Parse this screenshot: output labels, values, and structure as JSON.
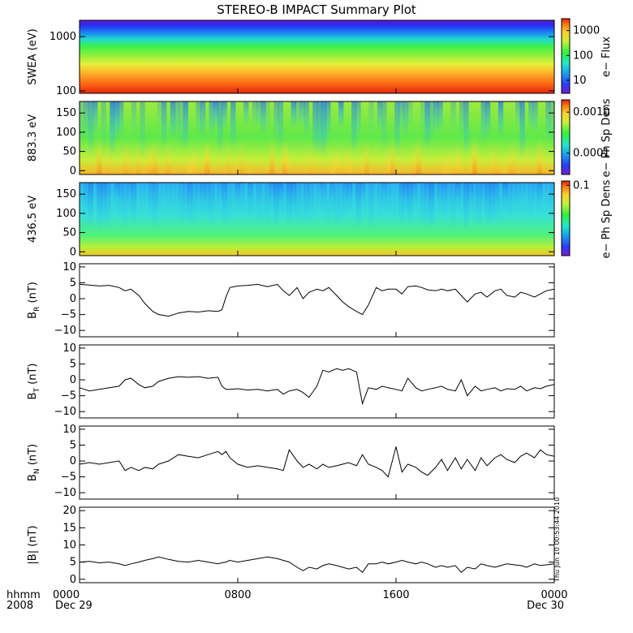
{
  "figure": {
    "title": "STEREO-B IMPACT Summary Plot",
    "stamp": "Thu Jun 10 00:53:44 2010",
    "x_label_line1": "hhmm",
    "x_label_line2": "2008",
    "x_ticks": [
      {
        "value": 0,
        "line1": "0000",
        "line2": "Dec 29"
      },
      {
        "value": 8,
        "line1": "0800",
        "line2": ""
      },
      {
        "value": 16,
        "line1": "1600",
        "line2": ""
      },
      {
        "value": 24,
        "line1": "0000",
        "line2": "Dec 30"
      }
    ]
  },
  "chart_data": [
    {
      "type": "heatmap",
      "ylabel": "SWEA (eV)",
      "x_range_hours": [
        0,
        24
      ],
      "ylim": [
        90,
        2000
      ],
      "y_scale": "log",
      "y_ticks": [
        {
          "value": 100,
          "label": "100"
        },
        {
          "value": 1000,
          "label": "1000"
        }
      ],
      "colorbar": {
        "label": "e− Flux",
        "scale": "log",
        "range": [
          3,
          3000
        ],
        "ticks": [
          {
            "value": 10,
            "label": "10"
          },
          {
            "value": 100,
            "label": "100"
          },
          {
            "value": 1000,
            "label": "1000"
          }
        ]
      }
    },
    {
      "type": "heatmap",
      "ylabel": "883.3 eV",
      "x_range_hours": [
        0,
        24
      ],
      "ylim": [
        -10,
        180
      ],
      "y_ticks": [
        {
          "value": 0,
          "label": "0"
        },
        {
          "value": 50,
          "label": "50"
        },
        {
          "value": 100,
          "label": "100"
        },
        {
          "value": 150,
          "label": "150"
        }
      ],
      "colorbar": {
        "label": "e− Ph Sp Dens",
        "scale": "log",
        "range": [
          3e-05,
          0.002
        ],
        "ticks": [
          {
            "value": 0.0001,
            "label": "0.0001"
          },
          {
            "value": 0.001,
            "label": "0.0010"
          }
        ]
      }
    },
    {
      "type": "heatmap",
      "ylabel": "436.5 eV",
      "x_range_hours": [
        0,
        24
      ],
      "ylim": [
        -10,
        180
      ],
      "y_ticks": [
        {
          "value": 0,
          "label": "0"
        },
        {
          "value": 50,
          "label": "50"
        },
        {
          "value": 100,
          "label": "100"
        },
        {
          "value": 150,
          "label": "150"
        }
      ],
      "colorbar": {
        "label": "e− Ph Sp Dens",
        "scale": "log",
        "range": [
          0.005,
          0.12
        ],
        "ticks": [
          {
            "value": 0.1,
            "label": "0.1"
          }
        ]
      }
    },
    {
      "type": "line",
      "ylabel_main": "B",
      "ylabel_sub": "R",
      "ylabel_unit": " (nT)",
      "ylim": [
        -12,
        11
      ],
      "y_ticks": [
        {
          "value": -10,
          "label": "−10"
        },
        {
          "value": -5,
          "label": "−5"
        },
        {
          "value": 0,
          "label": "0"
        },
        {
          "value": 5,
          "label": "5"
        },
        {
          "value": 10,
          "label": "10"
        }
      ],
      "x": [
        0,
        0.5,
        1,
        1.5,
        2,
        2.3,
        2.6,
        3,
        3.3,
        3.7,
        4,
        4.5,
        5,
        5.5,
        6,
        6.5,
        7,
        7.2,
        7.4,
        7.6,
        8,
        8.5,
        9,
        9.5,
        10,
        10.3,
        10.6,
        11,
        11.3,
        11.6,
        12,
        12.3,
        12.6,
        13,
        13.3,
        13.6,
        14,
        14.3,
        14.6,
        15,
        15.3,
        15.6,
        16,
        16.3,
        16.6,
        17,
        17.3,
        17.6,
        18,
        18.3,
        18.6,
        19,
        19.3,
        19.6,
        20,
        20.3,
        20.6,
        21,
        21.3,
        21.6,
        22,
        22.3,
        22.6,
        23,
        23.3,
        23.6,
        24
      ],
      "values": [
        4.5,
        4.3,
        4.0,
        4.2,
        3.5,
        2.5,
        3.0,
        1.0,
        -1.5,
        -4.0,
        -5.0,
        -5.5,
        -4.5,
        -4.0,
        -4.2,
        -3.8,
        -4.0,
        -3.5,
        0.5,
        3.5,
        4.0,
        4.2,
        4.5,
        3.8,
        4.5,
        2.5,
        1.0,
        3.5,
        0.0,
        2.0,
        3.0,
        2.5,
        3.5,
        1.0,
        -1.0,
        -2.5,
        -4.0,
        -5.0,
        -2.0,
        3.5,
        2.5,
        3.0,
        3.0,
        1.5,
        3.8,
        4.0,
        3.5,
        2.8,
        2.5,
        3.0,
        2.5,
        3.0,
        1.0,
        -1.0,
        1.5,
        2.0,
        0.5,
        2.5,
        3.0,
        1.0,
        0.5,
        2.0,
        1.5,
        0.5,
        1.5,
        2.5,
        3.0
      ]
    },
    {
      "type": "line",
      "ylabel_main": "B",
      "ylabel_sub": "T",
      "ylabel_unit": " (nT)",
      "ylim": [
        -12,
        11
      ],
      "y_ticks": [
        {
          "value": -10,
          "label": "−10"
        },
        {
          "value": -5,
          "label": "−5"
        },
        {
          "value": 0,
          "label": "0"
        },
        {
          "value": 5,
          "label": "5"
        },
        {
          "value": 10,
          "label": "10"
        }
      ],
      "x": [
        0,
        0.5,
        1,
        1.5,
        2,
        2.3,
        2.6,
        3,
        3.3,
        3.7,
        4,
        4.5,
        5,
        5.5,
        6,
        6.5,
        7,
        7.2,
        7.4,
        7.6,
        8,
        8.5,
        9,
        9.5,
        10,
        10.3,
        10.6,
        11,
        11.3,
        11.6,
        12,
        12.3,
        12.6,
        13,
        13.3,
        13.6,
        14,
        14.3,
        14.6,
        15,
        15.3,
        15.6,
        16,
        16.3,
        16.6,
        17,
        17.3,
        17.6,
        18,
        18.3,
        18.6,
        19,
        19.3,
        19.6,
        20,
        20.3,
        20.6,
        21,
        21.3,
        21.6,
        22,
        22.3,
        22.6,
        23,
        23.3,
        23.6,
        24
      ],
      "values": [
        -2.5,
        -3.5,
        -3.0,
        -2.5,
        -2.0,
        0.0,
        0.5,
        -1.5,
        -2.5,
        -2.0,
        -0.5,
        0.5,
        1.0,
        0.8,
        1.0,
        0.5,
        0.8,
        -2.0,
        -3.0,
        -3.0,
        -2.8,
        -3.2,
        -3.0,
        -3.5,
        -3.0,
        -4.5,
        -3.5,
        -3.0,
        -4.0,
        -5.5,
        -2.0,
        3.0,
        2.5,
        3.5,
        3.0,
        3.5,
        2.5,
        -7.5,
        -2.5,
        -3.0,
        -2.0,
        -2.5,
        -3.0,
        -3.5,
        0.5,
        -2.5,
        -3.5,
        -3.0,
        -2.5,
        -2.0,
        -3.0,
        -3.5,
        0.0,
        -5.0,
        -2.0,
        -3.5,
        -3.0,
        -2.5,
        -3.5,
        -2.8,
        -3.0,
        -2.0,
        -3.5,
        -2.5,
        -2.8,
        -2.0,
        -1.5
      ]
    },
    {
      "type": "line",
      "ylabel_main": "B",
      "ylabel_sub": "N",
      "ylabel_unit": " (nT)",
      "ylim": [
        -12,
        11
      ],
      "y_ticks": [
        {
          "value": -10,
          "label": "−10"
        },
        {
          "value": -5,
          "label": "−5"
        },
        {
          "value": 0,
          "label": "0"
        },
        {
          "value": 5,
          "label": "5"
        },
        {
          "value": 10,
          "label": "10"
        }
      ],
      "x": [
        0,
        0.5,
        1,
        1.5,
        2,
        2.3,
        2.6,
        3,
        3.3,
        3.7,
        4,
        4.5,
        5,
        5.5,
        6,
        6.5,
        7,
        7.2,
        7.4,
        7.6,
        8,
        8.5,
        9,
        9.5,
        10,
        10.3,
        10.6,
        11,
        11.3,
        11.6,
        12,
        12.3,
        12.6,
        13,
        13.3,
        13.6,
        14,
        14.3,
        14.6,
        15,
        15.3,
        15.6,
        16,
        16.3,
        16.6,
        17,
        17.3,
        17.6,
        18,
        18.3,
        18.6,
        19,
        19.3,
        19.6,
        20,
        20.3,
        20.6,
        21,
        21.3,
        21.6,
        22,
        22.3,
        22.6,
        23,
        23.3,
        23.6,
        24
      ],
      "values": [
        -1.0,
        -0.5,
        -1.0,
        -0.5,
        0.0,
        -3.0,
        -2.0,
        -3.0,
        -2.0,
        -2.5,
        -1.0,
        0.0,
        2.0,
        1.5,
        1.0,
        2.0,
        3.0,
        2.0,
        3.0,
        1.0,
        -1.0,
        -2.0,
        -1.5,
        -2.0,
        -2.5,
        -3.0,
        3.5,
        0.0,
        -2.0,
        -1.0,
        -2.5,
        -1.0,
        -2.0,
        -1.5,
        -1.0,
        -0.5,
        -1.5,
        2.0,
        -1.0,
        -2.0,
        -3.0,
        -5.0,
        4.5,
        -3.5,
        -1.0,
        -2.0,
        -3.5,
        -4.5,
        -2.0,
        0.5,
        -3.0,
        1.0,
        -2.5,
        0.5,
        -3.0,
        1.0,
        -1.5,
        1.0,
        2.0,
        0.5,
        -0.5,
        1.5,
        2.5,
        1.0,
        3.5,
        2.0,
        1.5
      ]
    },
    {
      "type": "line",
      "ylabel_main": "|B|",
      "ylabel_sub": "",
      "ylabel_unit": " (nT)",
      "ylim": [
        -1,
        21
      ],
      "y_ticks": [
        {
          "value": 0,
          "label": "0"
        },
        {
          "value": 5,
          "label": "5"
        },
        {
          "value": 10,
          "label": "10"
        },
        {
          "value": 15,
          "label": "15"
        },
        {
          "value": 20,
          "label": "20"
        }
      ],
      "x": [
        0,
        0.5,
        1,
        1.5,
        2,
        2.3,
        2.6,
        3,
        3.3,
        3.7,
        4,
        4.5,
        5,
        5.5,
        6,
        6.5,
        7,
        7.2,
        7.4,
        7.6,
        8,
        8.5,
        9,
        9.5,
        10,
        10.3,
        10.6,
        11,
        11.3,
        11.6,
        12,
        12.3,
        12.6,
        13,
        13.3,
        13.6,
        14,
        14.3,
        14.6,
        15,
        15.3,
        15.6,
        16,
        16.3,
        16.6,
        17,
        17.3,
        17.6,
        18,
        18.3,
        18.6,
        19,
        19.3,
        19.6,
        20,
        20.3,
        20.6,
        21,
        21.3,
        21.6,
        22,
        22.3,
        22.6,
        23,
        23.3,
        23.6,
        24
      ],
      "values": [
        5.0,
        5.2,
        4.8,
        5.0,
        4.5,
        4.0,
        4.5,
        5.0,
        5.5,
        6.0,
        6.5,
        5.8,
        5.2,
        5.0,
        5.5,
        5.0,
        4.5,
        4.8,
        5.0,
        5.5,
        5.0,
        5.5,
        6.0,
        6.5,
        6.0,
        5.5,
        5.0,
        3.5,
        2.5,
        3.5,
        3.0,
        4.0,
        4.5,
        4.0,
        3.5,
        3.0,
        3.5,
        2.0,
        4.5,
        4.5,
        5.0,
        4.5,
        5.0,
        5.5,
        5.0,
        4.5,
        5.0,
        4.5,
        3.5,
        4.0,
        3.5,
        4.0,
        2.0,
        3.5,
        3.0,
        4.5,
        4.0,
        3.5,
        4.0,
        4.5,
        4.2,
        4.0,
        3.5,
        4.5,
        4.0,
        4.2,
        4.5
      ]
    }
  ]
}
